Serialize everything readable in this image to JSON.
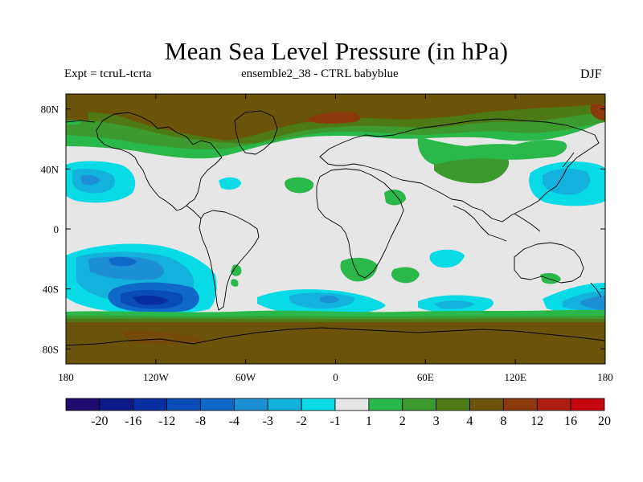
{
  "title": "Mean Sea Level Pressure (in hPa)",
  "left_subtitle": "Expt = tcruL-tcrta",
  "center_subtitle": "ensemble2_38 - CTRL babyblue",
  "right_subtitle": "DJF",
  "chart_data": {
    "type": "heatmap",
    "title": "Mean Sea Level Pressure (in hPa)",
    "variable": "Mean Sea Level Pressure difference",
    "units": "hPa",
    "season": "DJF",
    "lon_range": [
      -180,
      180
    ],
    "lat_range": [
      -90,
      90
    ],
    "x_ticks": [
      "180",
      "120W",
      "60W",
      "0",
      "60E",
      "120E",
      "180"
    ],
    "x_tick_values": [
      -180,
      -120,
      -60,
      0,
      60,
      120,
      180
    ],
    "y_ticks": [
      "80N",
      "40N",
      "0",
      "40S",
      "80S"
    ],
    "y_tick_values": [
      80,
      40,
      0,
      -40,
      -80
    ],
    "colorbar": {
      "labels": [
        "-20",
        "-16",
        "-12",
        "-8",
        "-4",
        "-3",
        "-2",
        "-1",
        "1",
        "2",
        "3",
        "4",
        "8",
        "12",
        "16",
        "20"
      ],
      "colors": [
        "#1f0a6e",
        "#0d1a86",
        "#072fa0",
        "#0a4cb5",
        "#1069c7",
        "#1d8fd3",
        "#13b2dc",
        "#08dbe6",
        "#e6e6e6",
        "#2ab84a",
        "#3c9a2e",
        "#4e7a16",
        "#6b540a",
        "#8c3a0c",
        "#ad1e0e",
        "#c4060e"
      ]
    },
    "regions": [
      {
        "desc": "Arctic high anomaly",
        "level": "8",
        "lon": [
          -180,
          180
        ],
        "lat": [
          60,
          90
        ]
      },
      {
        "desc": "Antarctic high anomaly",
        "level": "8",
        "lon": [
          -180,
          180
        ],
        "lat": [
          -90,
          -62
        ]
      },
      {
        "desc": "Southern Pacific low anomaly",
        "level": "-8",
        "lon": [
          -130,
          -90
        ],
        "lat": [
          -50,
          -42
        ]
      },
      {
        "desc": "North Pacific low anomaly (west)",
        "level": "-3",
        "lon": [
          -180,
          -155
        ],
        "lat": [
          25,
          42
        ]
      },
      {
        "desc": "North Pacific low anomaly (east)",
        "level": "-3",
        "lon": [
          120,
          180
        ],
        "lat": [
          25,
          42
        ]
      },
      {
        "desc": "Southern Africa high anomaly",
        "level": "2",
        "lon": [
          4,
          22
        ],
        "lat": [
          -35,
          -25
        ]
      },
      {
        "desc": "Southern Indian Ocean low anomaly",
        "level": "-1",
        "lon": [
          50,
          72
        ],
        "lat": [
          -28,
          -18
        ]
      }
    ]
  }
}
